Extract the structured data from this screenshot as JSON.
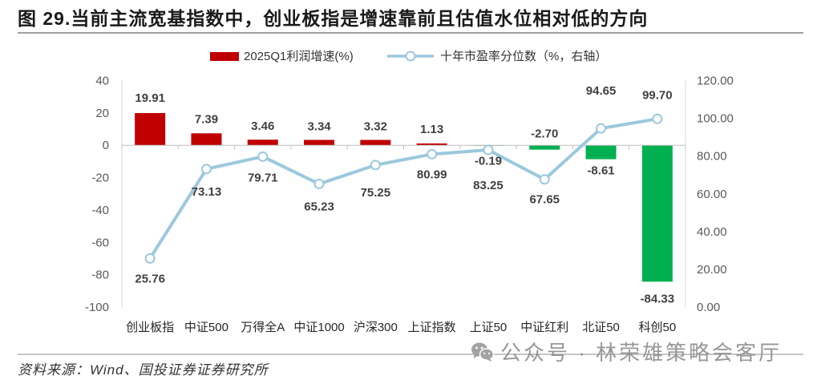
{
  "chart_data": {
    "type": "bar",
    "title": "图 29.当前主流宽基指数中，创业板指是增速靠前且估值水位相对低的方向",
    "categories": [
      "创业板指",
      "中证500",
      "万得全A",
      "中证1000",
      "沪深300",
      "上证指数",
      "上证50",
      "中证红利",
      "北证50",
      "科创50"
    ],
    "series": [
      {
        "name": "2025Q1利润增速(%)",
        "type": "bar",
        "y_axis": "left",
        "values": [
          19.91,
          7.39,
          3.46,
          3.34,
          3.32,
          1.13,
          -0.19,
          -2.7,
          -8.61,
          -84.33
        ],
        "color_positive": "#C00000",
        "color_negative": "#00B050"
      },
      {
        "name": "十年市盈率分位数（%，右轴）",
        "type": "line",
        "y_axis": "right",
        "values": [
          25.76,
          73.13,
          79.71,
          65.23,
          75.25,
          80.99,
          83.25,
          67.65,
          94.65,
          99.7
        ],
        "color": "#9CC8DE"
      }
    ],
    "left_axis": {
      "ylim": [
        -100,
        40
      ],
      "ticks": [
        40,
        20,
        0,
        -20,
        -40,
        -60,
        -80,
        -100
      ]
    },
    "right_axis": {
      "ylim": [
        0,
        120
      ],
      "ticks": [
        120,
        100,
        80,
        60,
        40,
        20,
        0
      ]
    },
    "data_labels": true,
    "grid": false,
    "legend_position": "top"
  },
  "source": "资料来源：Wind、国投证券证券研究所",
  "watermark": {
    "text": "公众号 · 林荣雄策略会客厅",
    "icon": "wechat-icon"
  }
}
